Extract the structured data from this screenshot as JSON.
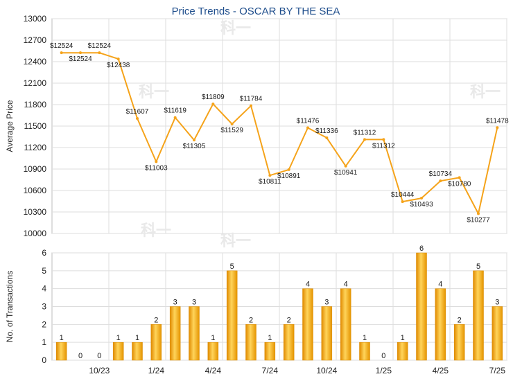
{
  "chart_data": [
    {
      "type": "line",
      "title": "Price Trends - OSCAR BY THE SEA",
      "ylabel": "Average Price",
      "ylim": [
        10000,
        13000
      ],
      "yticks": [
        10000,
        10300,
        10600,
        10900,
        11200,
        11500,
        11800,
        12100,
        12400,
        12700,
        13000
      ],
      "x": [
        "8/23",
        "9/23",
        "10/23",
        "11/23",
        "12/23",
        "1/24",
        "2/24",
        "3/24",
        "4/24",
        "5/24",
        "6/24",
        "7/24",
        "8/24",
        "9/24",
        "10/24",
        "11/24",
        "12/24",
        "1/25",
        "2/25",
        "3/25",
        "4/25",
        "5/25",
        "6/25",
        "7/25"
      ],
      "values": [
        12524,
        12524,
        12524,
        12438,
        11607,
        11003,
        11619,
        11305,
        11809,
        11529,
        11784,
        10811,
        10891,
        11476,
        11336,
        10941,
        11312,
        11312,
        10444,
        10493,
        10734,
        10780,
        10277,
        11478
      ],
      "labels": [
        "$12524",
        "$12524",
        "$12524",
        "$12438",
        "$11607",
        "$11003",
        "$11619",
        "$11305",
        "$11809",
        "$11529",
        "$11784",
        "$10811",
        "$10891",
        "$11476",
        "$11336",
        "$10941",
        "$11312",
        "$11312",
        "$10444",
        "$10493",
        "$10734",
        "$10780",
        "$10277",
        "$11478"
      ],
      "color": "#f5a31a",
      "grid": true
    },
    {
      "type": "bar",
      "ylabel": "No. of Transactions",
      "ylim": [
        0,
        6
      ],
      "yticks": [
        0,
        1,
        2,
        3,
        4,
        5,
        6
      ],
      "x": [
        "8/23",
        "9/23",
        "10/23",
        "11/23",
        "12/23",
        "1/24",
        "2/24",
        "3/24",
        "4/24",
        "5/24",
        "6/24",
        "7/24",
        "8/24",
        "9/24",
        "10/24",
        "11/24",
        "12/24",
        "1/25",
        "2/25",
        "3/25",
        "4/25",
        "5/25",
        "6/25",
        "7/25"
      ],
      "values": [
        1,
        0,
        0,
        1,
        1,
        2,
        3,
        3,
        1,
        5,
        2,
        1,
        2,
        4,
        3,
        4,
        1,
        0,
        1,
        6,
        4,
        2,
        5,
        3
      ],
      "xtick_labels": [
        "10/23",
        "1/24",
        "4/24",
        "7/24",
        "10/24",
        "1/25",
        "4/25",
        "7/25"
      ],
      "xtick_indices": [
        2,
        5,
        8,
        11,
        14,
        17,
        20,
        23
      ],
      "color": "#f5a31a",
      "grid": true
    }
  ],
  "watermark": "科一"
}
